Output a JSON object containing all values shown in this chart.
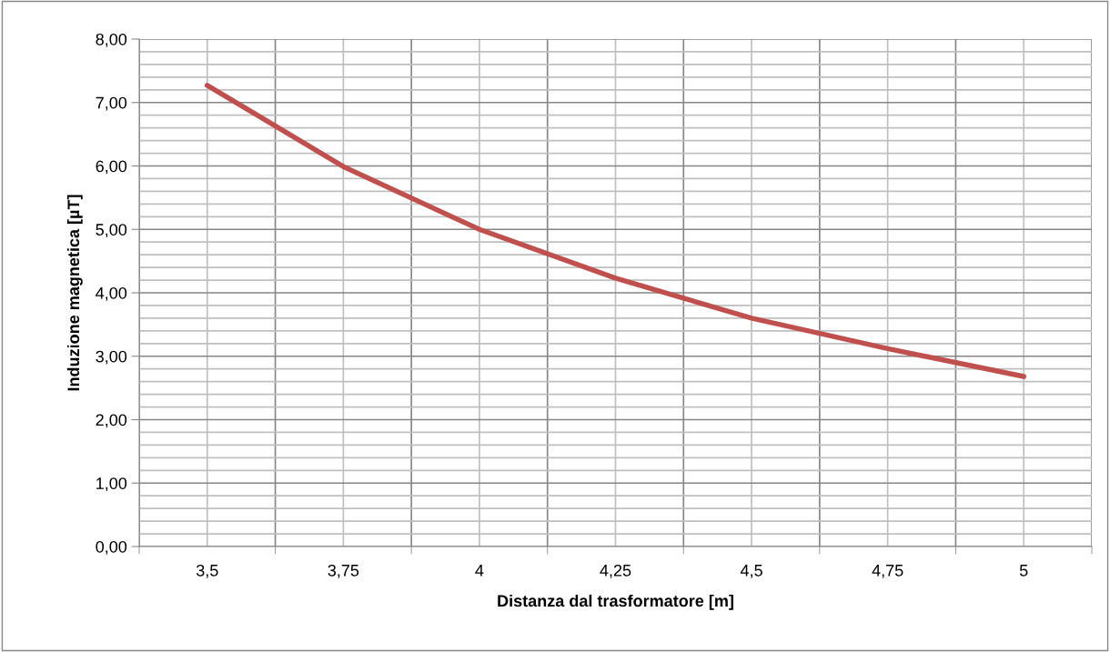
{
  "chart_data": {
    "type": "line",
    "xlabel": "Distanza dal trasformatore [m]",
    "ylabel": "Induzione magnetica [µT]",
    "categories": [
      "3,5",
      "3,75",
      "4",
      "4,25",
      "4,5",
      "4,75",
      "5"
    ],
    "series": [
      {
        "color": "#c0504d",
        "values": [
          7.27,
          5.99,
          5.0,
          4.23,
          3.6,
          3.12,
          2.68
        ]
      }
    ],
    "ylim": [
      0,
      8
    ],
    "yticks": [
      {
        "value": 0,
        "label": "0,00"
      },
      {
        "value": 1,
        "label": "1,00"
      },
      {
        "value": 2,
        "label": "2,00"
      },
      {
        "value": 3,
        "label": "3,00"
      },
      {
        "value": 4,
        "label": "4,00"
      },
      {
        "value": 5,
        "label": "5,00"
      },
      {
        "value": 6,
        "label": "6,00"
      },
      {
        "value": 7,
        "label": "7,00"
      },
      {
        "value": 8,
        "label": "8,00"
      }
    ],
    "grid": true
  }
}
